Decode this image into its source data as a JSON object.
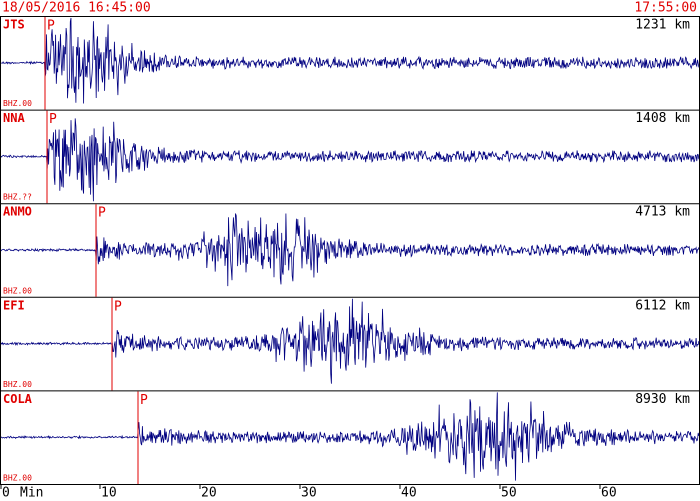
{
  "header": {
    "start_time": "18/05/2016 16:45:00",
    "end_time": "17:55:00"
  },
  "x_axis": {
    "unit": "Min",
    "xlim": [
      0,
      70
    ],
    "xticks": [
      0,
      10,
      20,
      30,
      40,
      50,
      60
    ]
  },
  "traces": [
    {
      "station": "JTS",
      "distance": "1231 km",
      "channel": "BHZ.00",
      "phase": "P",
      "p_arrival_min": 4.5
    },
    {
      "station": "NNA",
      "distance": "1408 km",
      "channel": "BHZ.??",
      "phase": "P",
      "p_arrival_min": 4.7
    },
    {
      "station": "ANMO",
      "distance": "4713 km",
      "channel": "BHZ.00",
      "phase": "P",
      "p_arrival_min": 9.6
    },
    {
      "station": "EFI",
      "distance": "6112 km",
      "channel": "BHZ.00",
      "phase": "P",
      "p_arrival_min": 11.2
    },
    {
      "station": "COLA",
      "distance": "8930 km",
      "channel": "BHZ.00",
      "phase": "P",
      "p_arrival_min": 13.8
    }
  ]
}
